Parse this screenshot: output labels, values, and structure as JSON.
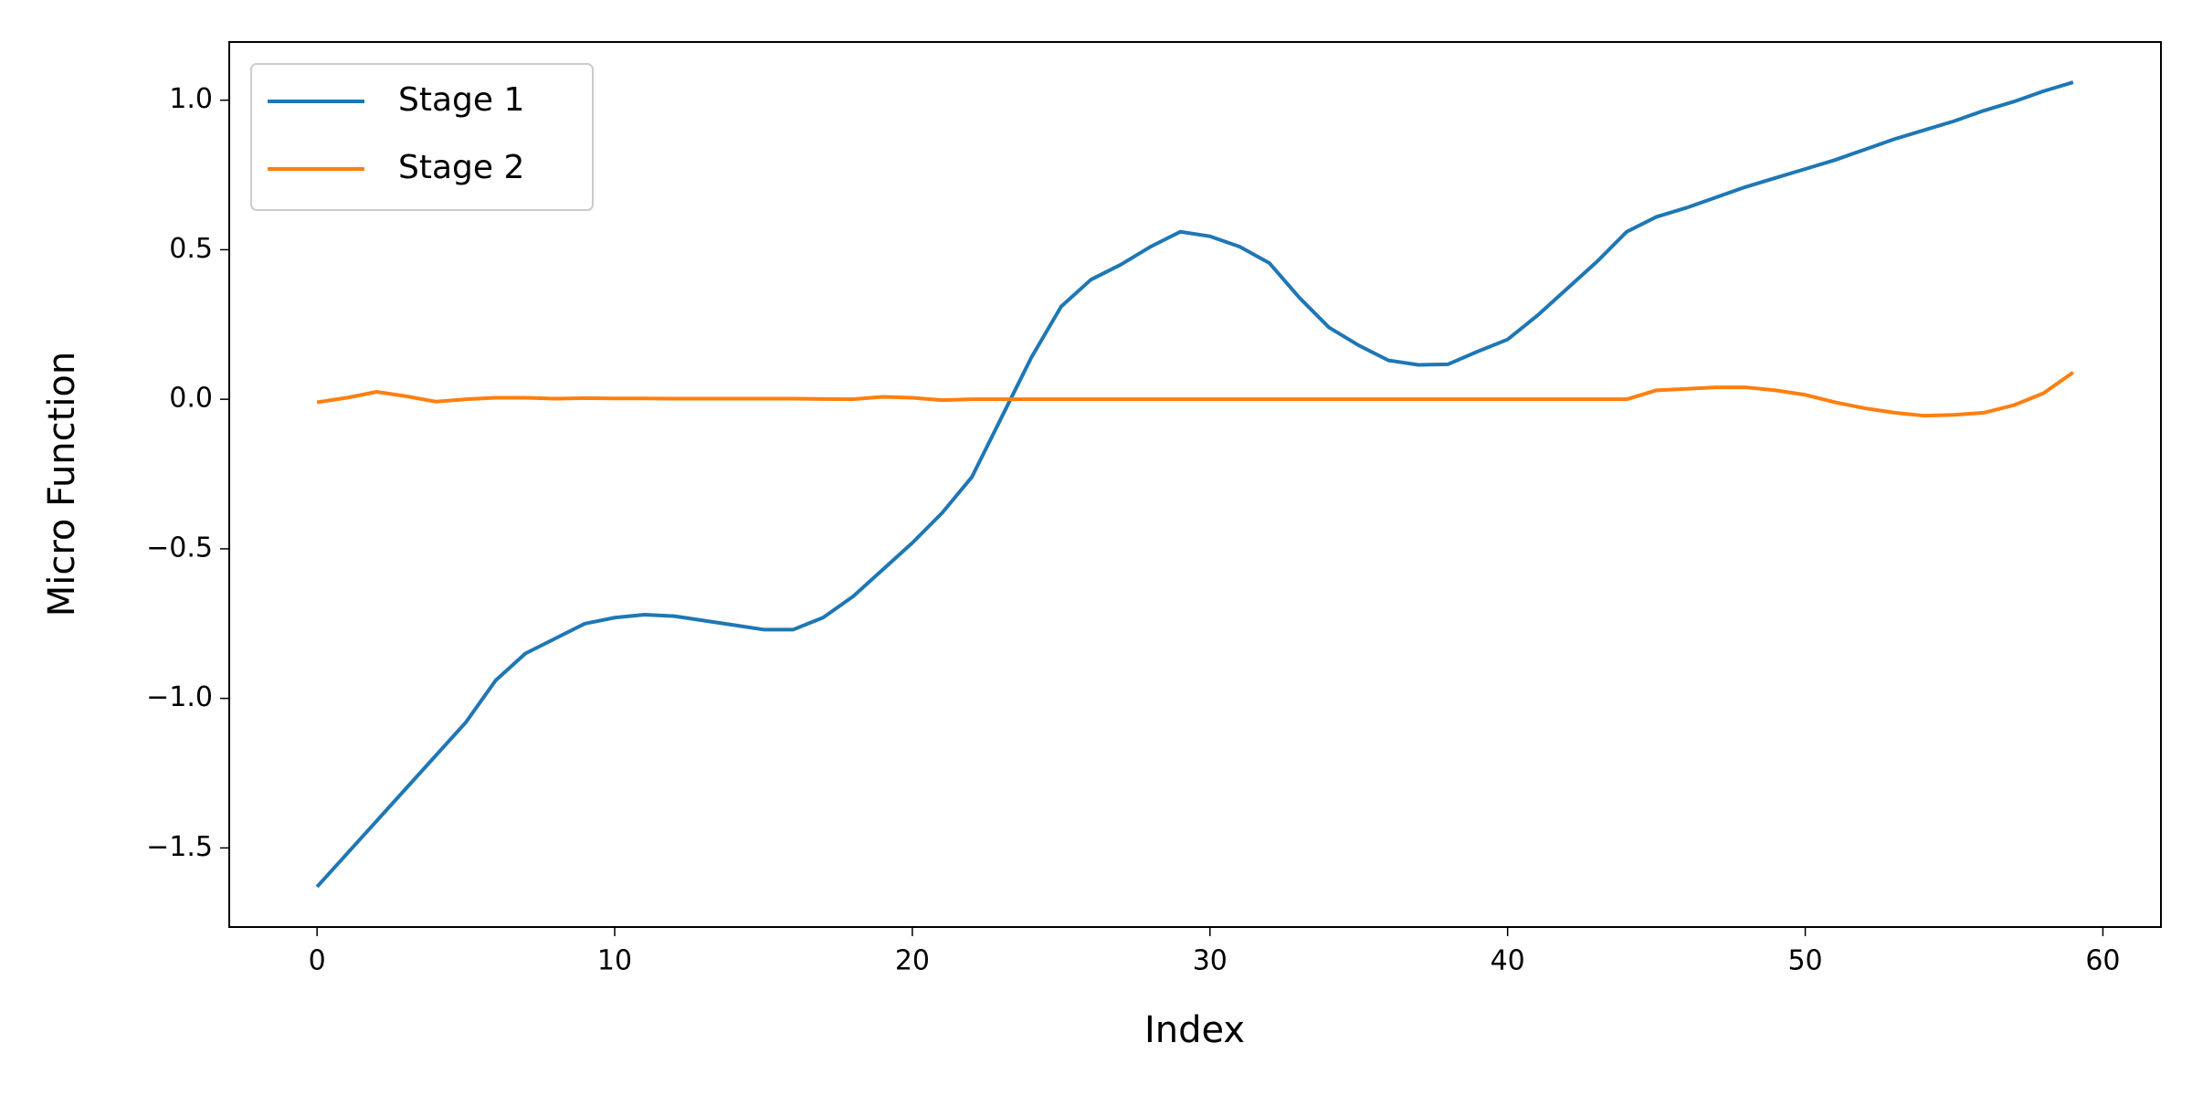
{
  "chart_data": {
    "type": "line",
    "xlabel": "Index",
    "ylabel": "Micro Function",
    "x": [
      0,
      1,
      2,
      3,
      4,
      5,
      6,
      7,
      8,
      9,
      10,
      11,
      12,
      13,
      14,
      15,
      16,
      17,
      18,
      19,
      20,
      21,
      22,
      23,
      24,
      25,
      26,
      27,
      28,
      29,
      30,
      31,
      32,
      33,
      34,
      35,
      36,
      37,
      38,
      39,
      40,
      41,
      42,
      43,
      44,
      45,
      46,
      47,
      48,
      49,
      50,
      51,
      52,
      53,
      54,
      55,
      56,
      57,
      58,
      59
    ],
    "series": [
      {
        "name": "Stage 1",
        "color": "#1f77b4",
        "values": [
          -1.63,
          -1.52,
          -1.41,
          -1.3,
          -1.19,
          -1.08,
          -0.94,
          -0.85,
          -0.8,
          -0.75,
          -0.73,
          -0.72,
          -0.725,
          -0.74,
          -0.755,
          -0.77,
          -0.77,
          -0.73,
          -0.66,
          -0.57,
          -0.48,
          -0.38,
          -0.26,
          -0.06,
          0.14,
          0.31,
          0.4,
          0.45,
          0.51,
          0.56,
          0.545,
          0.51,
          0.455,
          0.34,
          0.24,
          0.18,
          0.13,
          0.115,
          0.117,
          0.16,
          0.2,
          0.28,
          0.37,
          0.46,
          0.56,
          0.61,
          0.64,
          0.675,
          0.71,
          0.74,
          0.77,
          0.8,
          0.835,
          0.87,
          0.9,
          0.93,
          0.965,
          0.995,
          1.03,
          1.06
        ]
      },
      {
        "name": "Stage 2",
        "color": "#ff7f0e",
        "values": [
          -0.01,
          0.005,
          0.025,
          0.01,
          -0.008,
          0,
          0.005,
          0.005,
          0.002,
          0.004,
          0.003,
          0.003,
          0.002,
          0.002,
          0.002,
          0.002,
          0.002,
          0.001,
          0,
          0.008,
          0.005,
          -0.003,
          0,
          0,
          0,
          0,
          0,
          0,
          0,
          0,
          0,
          0,
          0,
          0,
          0,
          0,
          0,
          0,
          0,
          0,
          0,
          0,
          0,
          0,
          0,
          0.03,
          0.035,
          0.04,
          0.04,
          0.03,
          0.015,
          -0.01,
          -0.03,
          -0.045,
          -0.055,
          -0.052,
          -0.045,
          -0.02,
          0.02,
          0.09
        ]
      }
    ],
    "xlim": [
      -2.95,
      61.95
    ],
    "xticks": [
      0,
      10,
      20,
      30,
      40,
      50,
      60
    ],
    "ylim": [
      -1.7645,
      1.1945
    ],
    "yticks": [
      {
        "value": -1.5,
        "label": "−1.5"
      },
      {
        "value": -1.0,
        "label": "−1.0"
      },
      {
        "value": -0.5,
        "label": "−0.5"
      },
      {
        "value": 0,
        "label": "0.0"
      },
      {
        "value": 0.5,
        "label": "0.5"
      },
      {
        "value": 1.0,
        "label": "1.0"
      }
    ],
    "legend": "upper left",
    "grid": false
  }
}
